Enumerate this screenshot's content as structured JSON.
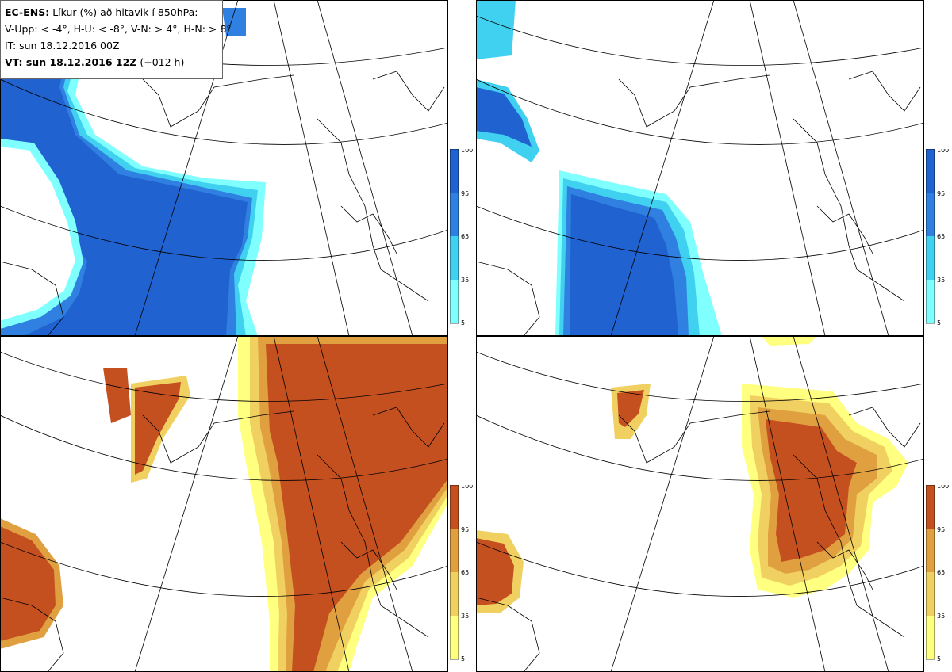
{
  "header": {
    "product": "EC-ENS:",
    "title": "Líkur (%) að hitavik í 850hPa:",
    "criteria": "V-Upp: < -4°, H-U: < -8°, V-N: > 4°, H-N: > 8°",
    "it_line": "IT: sun 18.12.2016 00Z",
    "vt_label": "VT: sun 18.12.2016 12Z",
    "vt_lead": "(+012 h)"
  },
  "colors": {
    "cold_scale": [
      "#80ffff",
      "#40d0f0",
      "#3fa0e6",
      "#2f80e0",
      "#1f62d0"
    ],
    "warm_scale": [
      "#ffff80",
      "#f0d060",
      "#e0a040",
      "#d07a30",
      "#c45020"
    ],
    "coastline": "#000000",
    "grid": "#000000"
  },
  "colorbar_cold": {
    "ticks": [
      "100",
      "95",
      "65",
      "35",
      "5"
    ]
  },
  "colorbar_warm": {
    "ticks": [
      "100",
      "95",
      "65",
      "35",
      "5"
    ]
  },
  "panels": [
    "V-Upp",
    "H-U",
    "V-N",
    "H-N"
  ]
}
